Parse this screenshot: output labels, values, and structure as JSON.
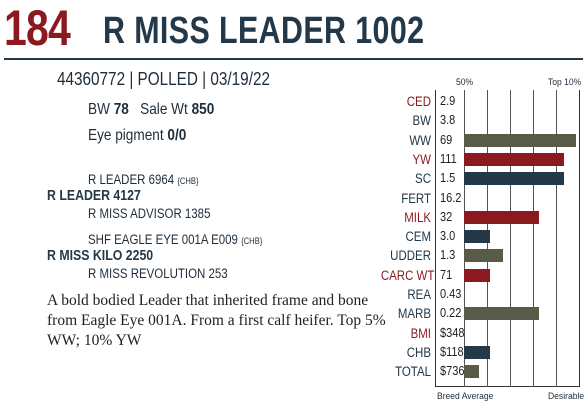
{
  "header": {
    "lot": "184",
    "name": "R MISS LEADER 1002"
  },
  "info": {
    "line": "44360772 | POLLED | 03/19/22"
  },
  "weights": {
    "bw_label": "BW",
    "bw": "78",
    "sale_label": "Sale Wt",
    "sale": "850"
  },
  "eye": {
    "label": "Eye pigment",
    "value": "0/0"
  },
  "pedigree": {
    "sire_sire": "R LEADER 6964",
    "sire_sire_tag": "{CHB}",
    "sire": "R LEADER 4127",
    "sire_dam": "R MISS ADVISOR 1385",
    "dam_sire": "SHF EAGLE EYE 001A E009",
    "dam_sire_tag": "{CHB}",
    "dam": "R MISS KILO 2250",
    "dam_dam": "R MISS REVOLUTION 253"
  },
  "description": "A bold bodied Leader that inherited frame and bone from Eagle Eye 001A. From a first calf heifer. Top 5% WW; 10% YW",
  "chart_labels": {
    "top_50": "50%",
    "top_10": "Top 10%",
    "bottom_left": "Breed Average",
    "bottom_right": "Desirable"
  },
  "colors": {
    "red": "#8b1a1f",
    "navy": "#233848",
    "olive": "#5a5a48"
  },
  "chart_data": {
    "type": "bar",
    "rows": [
      {
        "label": "CED",
        "value": "2.9",
        "color": "red",
        "bar": 0
      },
      {
        "label": "BW",
        "value": "3.8",
        "color": "navy",
        "bar": 0
      },
      {
        "label": "WW",
        "value": "69",
        "color": "olive",
        "bar": 0.98
      },
      {
        "label": "YW",
        "value": "111",
        "color": "red",
        "bar": 0.88
      },
      {
        "label": "SC",
        "value": "1.5",
        "color": "navy",
        "bar": 0.88
      },
      {
        "label": "FERT",
        "value": "16.2",
        "color": "olive",
        "bar": 0
      },
      {
        "label": "MILK",
        "value": "32",
        "color": "red",
        "bar": 0.66
      },
      {
        "label": "CEM",
        "value": "3.0",
        "color": "navy",
        "bar": 0.23
      },
      {
        "label": "UDDER",
        "value": "1.3",
        "color": "olive",
        "bar": 0.34
      },
      {
        "label": "CARC WT",
        "value": "71",
        "color": "red",
        "bar": 0.23
      },
      {
        "label": "REA",
        "value": "0.43",
        "color": "navy",
        "bar": 0
      },
      {
        "label": "MARB",
        "value": "0.22",
        "color": "olive",
        "bar": 0.66
      },
      {
        "label": "BMI",
        "value": "$348",
        "color": "red",
        "bar": 0
      },
      {
        "label": "CHB",
        "value": "$118",
        "color": "navy",
        "bar": 0.23
      },
      {
        "label": "TOTAL",
        "value": "$736",
        "color": "olive",
        "bar": 0.13
      }
    ]
  }
}
